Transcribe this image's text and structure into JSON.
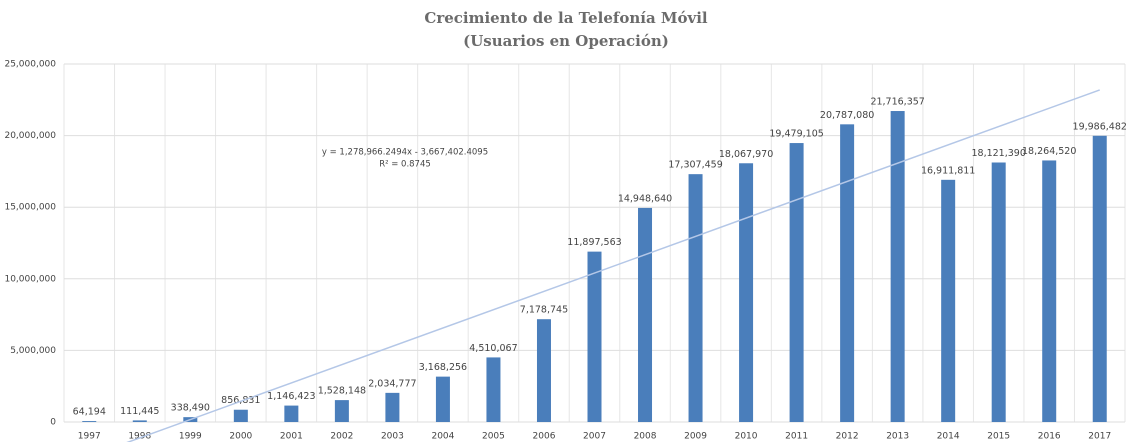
{
  "chart_data": {
    "type": "bar",
    "title": "Crecimiento de la Telefonía Móvil",
    "subtitle": "(Usuarios en Operación)",
    "categories": [
      "1997",
      "1998",
      "1999",
      "2000",
      "2001",
      "2002",
      "2003",
      "2004",
      "2005",
      "2006",
      "2007",
      "2008",
      "2009",
      "2010",
      "2011",
      "2012",
      "2013",
      "2014",
      "2015",
      "2016",
      "2017"
    ],
    "values": [
      64194,
      111445,
      338490,
      856831,
      1146423,
      1528148,
      2034777,
      3168256,
      4510067,
      7178745,
      11897563,
      14948640,
      17307459,
      18067970,
      19479105,
      20787080,
      21716357,
      16911811,
      18121390,
      18264520,
      19986482
    ],
    "value_labels": [
      "64,194",
      "111,445",
      "338,490",
      "856,831",
      "1,146,423",
      "1,528,148",
      "2,034,777",
      "3,168,256",
      "4,510,067",
      "7,178,745",
      "11,897,563",
      "14,948,640",
      "17,307,459",
      "18,067,970",
      "19,479,105",
      "20,787,080",
      "21,716,357",
      "16,911,811",
      "18,121,390",
      "18,264,520",
      "19,986,482"
    ],
    "color": "#4a7ebb",
    "ylim": [
      0,
      25000000
    ],
    "yticks": [
      0,
      {
        "value": 5000000,
        "label": "5,000,000"
      },
      {
        "value": 10000000,
        "label": "10,000,000"
      },
      {
        "value": 15000000,
        "label": "15,000,000"
      },
      {
        "value": 20000000,
        "label": "20,000,000"
      },
      {
        "value": 25000000,
        "label": "25,000,000"
      }
    ],
    "grid": true,
    "trendline": {
      "slope": 1278966.2494,
      "intercept": -3667402.4095,
      "color": "#b4c7e7",
      "label": "y = 1,278,966.2494x - 3,667,402.4095",
      "r2": 0.8745,
      "r2_label": "R² = 0.8745"
    }
  }
}
